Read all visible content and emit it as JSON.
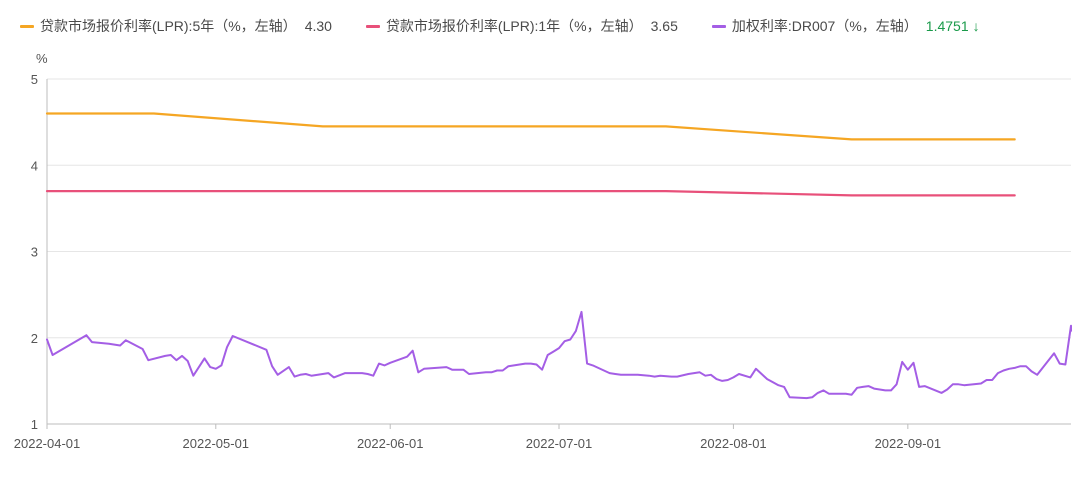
{
  "legend": {
    "s0": {
      "label": "贷款市场报价利率(LPR):5年（%，左轴）",
      "value": "4.30",
      "color": "#f5a623"
    },
    "s1": {
      "label": "贷款市场报价利率(LPR):1年（%，左轴）",
      "value": "3.65",
      "color": "#e8507a"
    },
    "s2": {
      "label": "加权利率:DR007（%，左轴）",
      "value": "1.4751",
      "color": "#a45ee5",
      "trend_icon": "arrow-down-icon"
    }
  },
  "chart_data": {
    "type": "line",
    "unit_label": "%",
    "ylim": [
      1,
      5
    ],
    "yticks": [
      1,
      2,
      3,
      4,
      5
    ],
    "xlim": [
      "2022-04-01",
      "2022-09-30"
    ],
    "xticks": [
      "2022-04-01",
      "2022-05-01",
      "2022-06-01",
      "2022-07-01",
      "2022-08-01",
      "2022-09-01"
    ],
    "grid": "horizontal",
    "legend_position": "top-left",
    "series": [
      {
        "name": "贷款市场报价利率(LPR):5年（%，左轴）",
        "color": "#f5a623",
        "points": [
          [
            "2022-04-01",
            4.6
          ],
          [
            "2022-04-20",
            4.6
          ],
          [
            "2022-05-20",
            4.45
          ],
          [
            "2022-06-20",
            4.45
          ],
          [
            "2022-07-20",
            4.45
          ],
          [
            "2022-08-22",
            4.3
          ],
          [
            "2022-09-20",
            4.3
          ]
        ]
      },
      {
        "name": "贷款市场报价利率(LPR):1年（%，左轴）",
        "color": "#e8507a",
        "points": [
          [
            "2022-04-01",
            3.7
          ],
          [
            "2022-04-20",
            3.7
          ],
          [
            "2022-05-20",
            3.7
          ],
          [
            "2022-06-20",
            3.7
          ],
          [
            "2022-07-20",
            3.7
          ],
          [
            "2022-08-22",
            3.65
          ],
          [
            "2022-09-20",
            3.65
          ]
        ]
      },
      {
        "name": "加权利率:DR007（%，左轴）",
        "color": "#a45ee5",
        "points": [
          [
            "2022-04-01",
            1.98
          ],
          [
            "2022-04-02",
            1.8
          ],
          [
            "2022-04-08",
            2.03
          ],
          [
            "2022-04-09",
            1.95
          ],
          [
            "2022-04-12",
            1.93
          ],
          [
            "2022-04-13",
            1.92
          ],
          [
            "2022-04-14",
            1.91
          ],
          [
            "2022-04-15",
            1.97
          ],
          [
            "2022-04-18",
            1.87
          ],
          [
            "2022-04-19",
            1.74
          ],
          [
            "2022-04-22",
            1.79
          ],
          [
            "2022-04-23",
            1.8
          ],
          [
            "2022-04-24",
            1.74
          ],
          [
            "2022-04-25",
            1.79
          ],
          [
            "2022-04-26",
            1.73
          ],
          [
            "2022-04-27",
            1.56
          ],
          [
            "2022-04-29",
            1.76
          ],
          [
            "2022-04-30",
            1.66
          ],
          [
            "2022-05-01",
            1.64
          ],
          [
            "2022-05-02",
            1.68
          ],
          [
            "2022-05-03",
            1.89
          ],
          [
            "2022-05-04",
            2.02
          ],
          [
            "2022-05-10",
            1.86
          ],
          [
            "2022-05-11",
            1.67
          ],
          [
            "2022-05-12",
            1.57
          ],
          [
            "2022-05-14",
            1.66
          ],
          [
            "2022-05-15",
            1.55
          ],
          [
            "2022-05-16",
            1.57
          ],
          [
            "2022-05-17",
            1.58
          ],
          [
            "2022-05-18",
            1.56
          ],
          [
            "2022-05-20",
            1.58
          ],
          [
            "2022-05-21",
            1.59
          ],
          [
            "2022-05-22",
            1.54
          ],
          [
            "2022-05-24",
            1.59
          ],
          [
            "2022-05-27",
            1.59
          ],
          [
            "2022-05-28",
            1.58
          ],
          [
            "2022-05-29",
            1.56
          ],
          [
            "2022-05-30",
            1.7
          ],
          [
            "2022-05-31",
            1.68
          ],
          [
            "2022-06-01",
            1.71
          ],
          [
            "2022-06-04",
            1.78
          ],
          [
            "2022-06-05",
            1.85
          ],
          [
            "2022-06-06",
            1.6
          ],
          [
            "2022-06-07",
            1.64
          ],
          [
            "2022-06-11",
            1.66
          ],
          [
            "2022-06-12",
            1.63
          ],
          [
            "2022-06-14",
            1.63
          ],
          [
            "2022-06-15",
            1.58
          ],
          [
            "2022-06-18",
            1.6
          ],
          [
            "2022-06-19",
            1.6
          ],
          [
            "2022-06-20",
            1.62
          ],
          [
            "2022-06-21",
            1.62
          ],
          [
            "2022-06-22",
            1.67
          ],
          [
            "2022-06-23",
            1.68
          ],
          [
            "2022-06-24",
            1.69
          ],
          [
            "2022-06-25",
            1.7
          ],
          [
            "2022-06-26",
            1.7
          ],
          [
            "2022-06-27",
            1.69
          ],
          [
            "2022-06-28",
            1.63
          ],
          [
            "2022-06-29",
            1.8
          ],
          [
            "2022-06-30",
            1.84
          ],
          [
            "2022-07-01",
            1.88
          ],
          [
            "2022-07-02",
            1.96
          ],
          [
            "2022-07-03",
            1.98
          ],
          [
            "2022-07-04",
            2.08
          ],
          [
            "2022-07-05",
            2.3
          ],
          [
            "2022-07-06",
            1.7
          ],
          [
            "2022-07-07",
            1.68
          ],
          [
            "2022-07-10",
            1.59
          ],
          [
            "2022-07-11",
            1.58
          ],
          [
            "2022-07-12",
            1.57
          ],
          [
            "2022-07-15",
            1.57
          ],
          [
            "2022-07-17",
            1.56
          ],
          [
            "2022-07-18",
            1.55
          ],
          [
            "2022-07-19",
            1.56
          ],
          [
            "2022-07-21",
            1.55
          ],
          [
            "2022-07-22",
            1.55
          ],
          [
            "2022-07-24",
            1.58
          ],
          [
            "2022-07-25",
            1.59
          ],
          [
            "2022-07-26",
            1.6
          ],
          [
            "2022-07-27",
            1.56
          ],
          [
            "2022-07-28",
            1.57
          ],
          [
            "2022-07-29",
            1.52
          ],
          [
            "2022-07-30",
            1.5
          ],
          [
            "2022-07-31",
            1.51
          ],
          [
            "2022-08-01",
            1.54
          ],
          [
            "2022-08-02",
            1.58
          ],
          [
            "2022-08-04",
            1.54
          ],
          [
            "2022-08-05",
            1.64
          ],
          [
            "2022-08-07",
            1.52
          ],
          [
            "2022-08-09",
            1.45
          ],
          [
            "2022-08-10",
            1.43
          ],
          [
            "2022-08-11",
            1.31
          ],
          [
            "2022-08-14",
            1.3
          ],
          [
            "2022-08-15",
            1.31
          ],
          [
            "2022-08-16",
            1.36
          ],
          [
            "2022-08-17",
            1.39
          ],
          [
            "2022-08-18",
            1.35
          ],
          [
            "2022-08-21",
            1.35
          ],
          [
            "2022-08-22",
            1.34
          ],
          [
            "2022-08-23",
            1.42
          ],
          [
            "2022-08-24",
            1.43
          ],
          [
            "2022-08-25",
            1.44
          ],
          [
            "2022-08-26",
            1.41
          ],
          [
            "2022-08-27",
            1.4
          ],
          [
            "2022-08-28",
            1.39
          ],
          [
            "2022-08-29",
            1.39
          ],
          [
            "2022-08-30",
            1.46
          ],
          [
            "2022-08-31",
            1.72
          ],
          [
            "2022-09-01",
            1.63
          ],
          [
            "2022-09-02",
            1.71
          ],
          [
            "2022-09-03",
            1.43
          ],
          [
            "2022-09-04",
            1.44
          ],
          [
            "2022-09-07",
            1.36
          ],
          [
            "2022-09-08",
            1.4
          ],
          [
            "2022-09-09",
            1.46
          ],
          [
            "2022-09-10",
            1.46
          ],
          [
            "2022-09-11",
            1.45
          ],
          [
            "2022-09-14",
            1.47
          ],
          [
            "2022-09-15",
            1.51
          ],
          [
            "2022-09-16",
            1.51
          ],
          [
            "2022-09-17",
            1.59
          ],
          [
            "2022-09-18",
            1.62
          ],
          [
            "2022-09-19",
            1.64
          ],
          [
            "2022-09-20",
            1.65
          ],
          [
            "2022-09-21",
            1.67
          ],
          [
            "2022-09-22",
            1.67
          ],
          [
            "2022-09-23",
            1.61
          ],
          [
            "2022-09-24",
            1.57
          ],
          [
            "2022-09-27",
            1.82
          ],
          [
            "2022-09-28",
            1.7
          ],
          [
            "2022-09-29",
            1.69
          ],
          [
            "2022-09-30",
            2.14
          ],
          [
            "2022-09-30",
            2.08
          ]
        ]
      }
    ]
  }
}
